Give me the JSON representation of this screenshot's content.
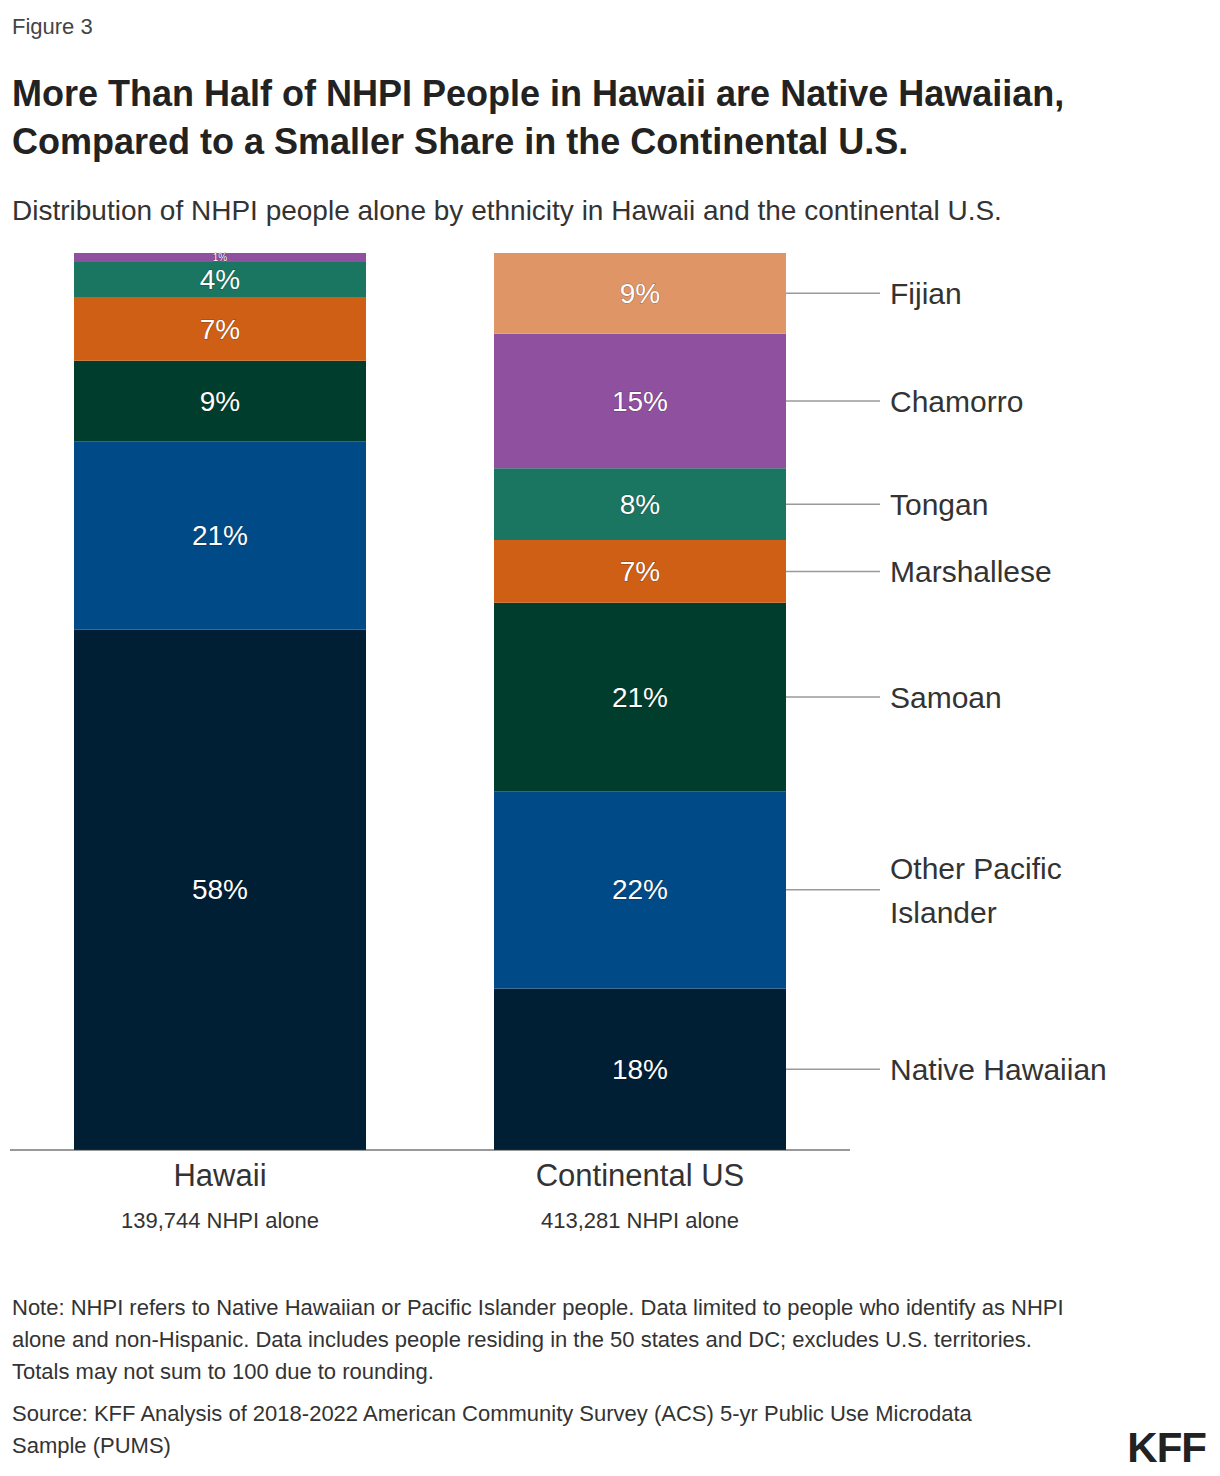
{
  "chart_data": {
    "type": "bar",
    "stacked": true,
    "figure_label": "Figure 3",
    "title": "More Than Half of NHPI People in Hawaii are Native Hawaiian, Compared to a Smaller Share in the Continental U.S.",
    "subtitle": "Distribution of NHPI people alone by ethnicity in Hawaii and the continental U.S.",
    "categories": [
      "Hawaii",
      "Continental US"
    ],
    "category_sublabels": [
      "139,744 NHPI alone",
      "413,281 NHPI alone"
    ],
    "ylim": [
      0,
      100
    ],
    "tick_labels": "x",
    "data_labels": true,
    "legend": "right",
    "series": [
      {
        "name": "Native Hawaiian",
        "color": "#001f35",
        "values": [
          58,
          18
        ],
        "value_labels": [
          "58%",
          "18%"
        ]
      },
      {
        "name": "Other Pacific Islander",
        "color": "#004b87",
        "values": [
          21,
          22
        ],
        "value_labels": [
          "21%",
          "22%"
        ]
      },
      {
        "name": "Samoan",
        "color": "#003d2d",
        "values": [
          9,
          21
        ],
        "value_labels": [
          "9%",
          "21%"
        ]
      },
      {
        "name": "Marshallese",
        "color": "#d05f16",
        "values": [
          7,
          7
        ],
        "value_labels": [
          "7%",
          "7%"
        ]
      },
      {
        "name": "Tongan",
        "color": "#1a7561",
        "values": [
          4,
          8
        ],
        "value_labels": [
          "4%",
          "8%"
        ]
      },
      {
        "name": "Chamorro",
        "color": "#8f50a0",
        "values": [
          1,
          15
        ],
        "value_labels": [
          "1%",
          "15%"
        ]
      },
      {
        "name": "Fijian",
        "color": "#e09566",
        "values": [
          null,
          9
        ],
        "value_labels": [
          null,
          "9%"
        ]
      }
    ],
    "note": "Note: NHPI refers to Native Hawaiian or Pacific Islander people. Data limited to people who identify as NHPI alone and non-Hispanic. Data includes people residing in the 50 states and DC; excludes U.S. territories. Totals may not sum to 100 due to rounding.",
    "source": "Source: KFF Analysis of 2018-2022 American Community Survey (ACS) 5-yr Public Use Microdata Sample (PUMS)",
    "logo": "KFF"
  }
}
